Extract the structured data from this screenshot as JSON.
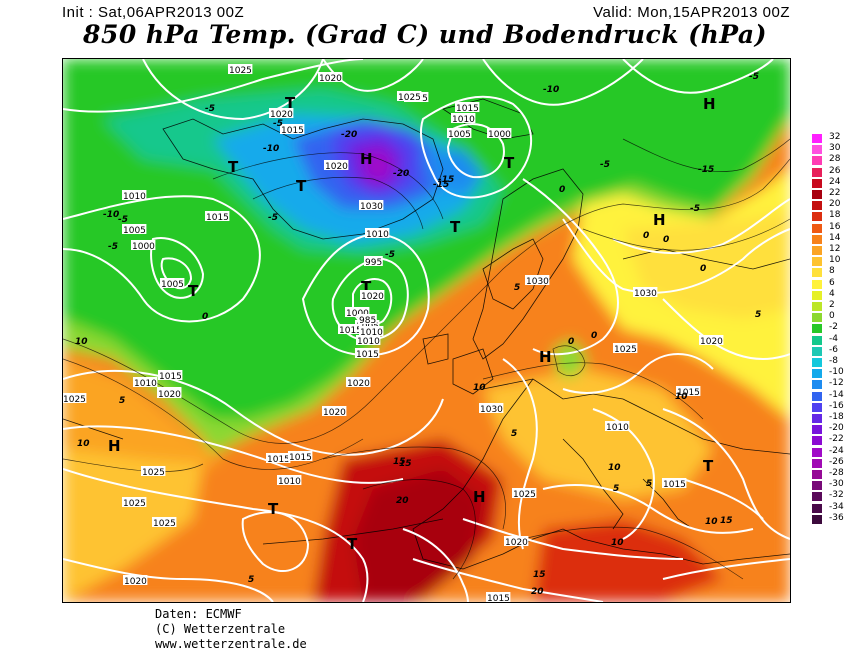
{
  "header": {
    "init": "Init : Sat,06APR2013 00Z",
    "valid": "Valid: Mon,15APR2013 00Z",
    "title": "850 hPa Temp. (Grad C) und Bodendruck (hPa)"
  },
  "footer": {
    "line1": "Daten: ECMWF",
    "line2": "(C) Wetterzentrale",
    "line3": "www.wetterzentrale.de"
  },
  "legend": {
    "labels": [
      "32",
      "30",
      "28",
      "26",
      "24",
      "22",
      "20",
      "18",
      "16",
      "14",
      "12",
      "10",
      "8",
      "6",
      "4",
      "2",
      "0",
      "-2",
      "-4",
      "-6",
      "-8",
      "-10",
      "-12",
      "-14",
      "-16",
      "-18",
      "-20",
      "-22",
      "-24",
      "-26",
      "-28",
      "-30",
      "-32",
      "-34",
      "-36"
    ],
    "colors": [
      "#ff20ff",
      "#ff50e0",
      "#ff3cb4",
      "#e8205a",
      "#c80a1e",
      "#a80010",
      "#c41010",
      "#dc2e10",
      "#ef5a14",
      "#f7821a",
      "#fba424",
      "#fec330",
      "#ffe03c",
      "#fff23c",
      "#e6f028",
      "#bce628",
      "#8cd830",
      "#28c828",
      "#14c88c",
      "#1ec8b4",
      "#14c8dc",
      "#14aaeb",
      "#1e8cf0",
      "#3264f0",
      "#5041f0",
      "#6428e6",
      "#7814dc",
      "#8c0ad2",
      "#a00ac8",
      "#a00ab4",
      "#960a96",
      "#780a78",
      "#5a0a5a",
      "#4a0a4a",
      "#3c0a3c"
    ]
  },
  "map_labels": {
    "highs": [
      "H",
      "H",
      "H",
      "H",
      "H",
      "H"
    ],
    "lows": [
      "T",
      "T",
      "T",
      "T",
      "T",
      "T",
      "T",
      "T",
      "T",
      "T"
    ],
    "isobars": [
      "1025",
      "1020",
      "1020",
      "1020",
      "1025",
      "1015",
      "1010",
      "1005",
      "1000",
      "1030",
      "1025",
      "1015",
      "1000",
      "1005",
      "1010",
      "1015",
      "1020",
      "1025",
      "1030",
      "1030",
      "1030",
      "1025",
      "1020",
      "1015",
      "1015",
      "1010",
      "1015",
      "1020",
      "1025",
      "1020",
      "1015",
      "1010",
      "1020",
      "1025",
      "1015",
      "1010",
      "1005",
      "1000",
      "995",
      "985",
      "1015",
      "1010",
      "1005",
      "1010",
      "1015",
      "1020",
      "1025",
      "1020",
      "1015",
      "1010",
      "1020",
      "1025"
    ],
    "temps": [
      "-5",
      "-5",
      "-10",
      "-5",
      "-10",
      "-15",
      "-20",
      "-20",
      "-15",
      "-10",
      "-5",
      "-5",
      "-15",
      "-5",
      "-5",
      "-5",
      "0",
      "0",
      "0",
      "0",
      "0",
      "0",
      "5",
      "5",
      "5",
      "5",
      "5",
      "5",
      "10",
      "10",
      "10",
      "10",
      "10",
      "10",
      "15",
      "15",
      "15",
      "15",
      "20",
      "20",
      "-5",
      "0",
      "10",
      "5"
    ]
  }
}
